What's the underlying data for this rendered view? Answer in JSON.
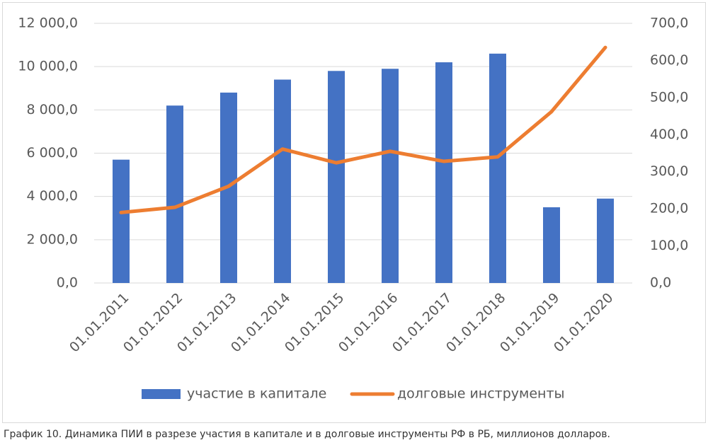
{
  "chart_data": {
    "type": "bar",
    "categories": [
      "01.01.2011",
      "01.01.2012",
      "01.01.2013",
      "01.01.2014",
      "01.01.2015",
      "01.01.2016",
      "01.01.2017",
      "01.01.2018",
      "01.01.2019",
      "01.01.2020"
    ],
    "series": [
      {
        "name": "участие в капитале",
        "type": "bar",
        "color": "#4472c4",
        "values": [
          5700,
          8200,
          8800,
          9400,
          9800,
          9900,
          10200,
          10600,
          3500,
          3900
        ]
      },
      {
        "name": "долговые инструменты",
        "type": "line",
        "axis": "y2",
        "color": "#ed7d31",
        "values": [
          190,
          204,
          261,
          361,
          324,
          355,
          328,
          340,
          462,
          635
        ]
      }
    ],
    "ylim": [
      0,
      12000
    ],
    "yticks": [
      {
        "value": 0,
        "label": "0,0"
      },
      {
        "value": 2000,
        "label": "2 000,0"
      },
      {
        "value": 4000,
        "label": "4 000,0"
      },
      {
        "value": 6000,
        "label": "6 000,0"
      },
      {
        "value": 8000,
        "label": "8 000,0"
      },
      {
        "value": 10000,
        "label": "10 000,0"
      },
      {
        "value": 12000,
        "label": "12 000,0"
      }
    ],
    "y2lim": [
      0,
      700
    ],
    "y2ticks": [
      {
        "value": 0,
        "label": "0,0"
      },
      {
        "value": 100,
        "label": "100,0"
      },
      {
        "value": 200,
        "label": "200,0"
      },
      {
        "value": 300,
        "label": "300,0"
      },
      {
        "value": 400,
        "label": "400,0"
      },
      {
        "value": 500,
        "label": "500,0"
      },
      {
        "value": 600,
        "label": "600,0"
      },
      {
        "value": 700,
        "label": "700,0"
      }
    ],
    "grid": true,
    "legend": "bottom"
  },
  "caption": "График 10. Динамика ПИИ в разрезе участия в капитале и в долговые инструменты РФ в РБ, миллионов долларов."
}
